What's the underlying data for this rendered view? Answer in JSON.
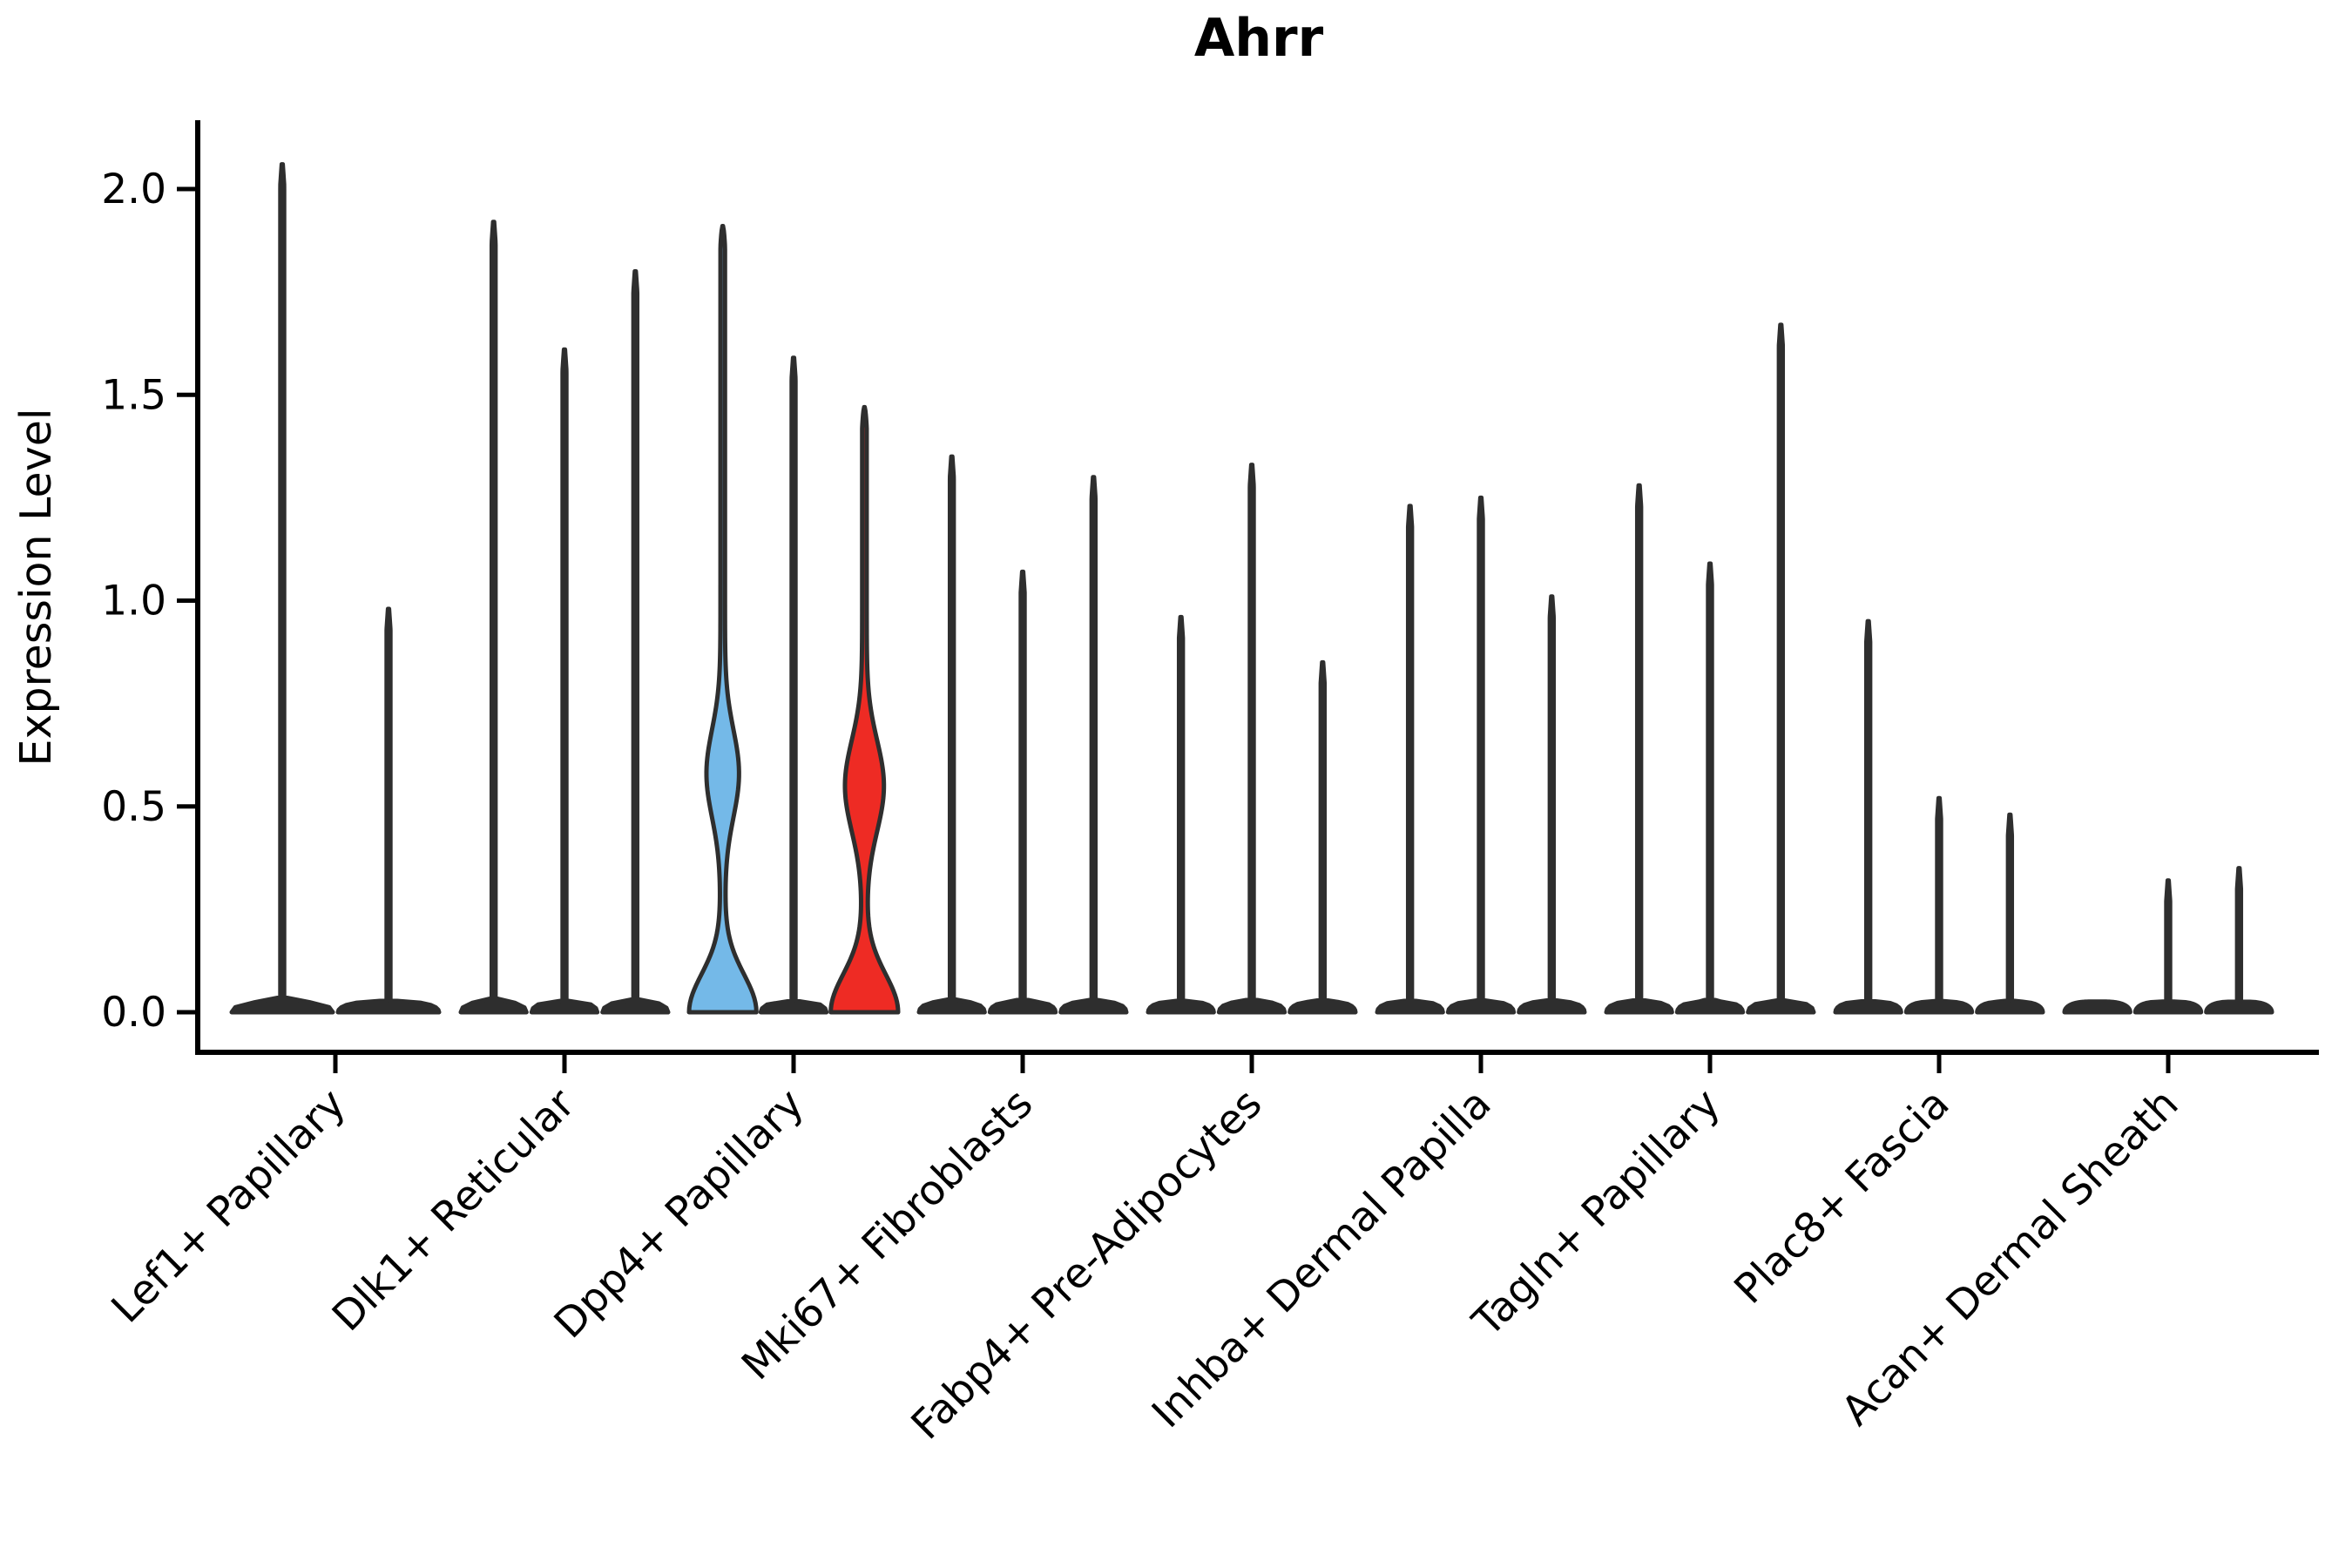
{
  "chart_data": {
    "type": "violin",
    "title": "Ahrr",
    "ylabel": "Expression Level",
    "xlabel": "",
    "ylim": [
      0,
      2.15
    ],
    "ytick_labels": [
      "0.0",
      "0.5",
      "1.0",
      "1.5",
      "2.0"
    ],
    "ytick_values": [
      0,
      0.5,
      1,
      1.5,
      2
    ],
    "grid": false,
    "legend": "none",
    "background": "#ffffff",
    "axis_color": "#000000",
    "violin_stroke_color": "#2E2E2E",
    "categories": [
      "Lef1+ Papillary",
      "Dlk1+ Reticular",
      "Dpp4+ Papillary",
      "Mki67+ Fibroblasts",
      "Fabp4+ Pre-Adipocytes",
      "Inhba+ Dermal Papilla",
      "Tagln+ Papillary",
      "Plac8+ Fascia",
      "Acan+ Dermal Sheath"
    ],
    "groups": [
      {
        "category": "Lef1+ Papillary",
        "violins": [
          {
            "max": 2.06,
            "color": "#2E2E2E"
          },
          {
            "max": 0.98,
            "color": "#2E2E2E"
          }
        ]
      },
      {
        "category": "Dlk1+ Reticular",
        "violins": [
          {
            "max": 1.92,
            "color": "#2E2E2E"
          },
          {
            "max": 1.61,
            "color": "#2E2E2E"
          },
          {
            "max": 1.8,
            "color": "#2E2E2E"
          }
        ]
      },
      {
        "category": "Dpp4+ Papillary",
        "violins": [
          {
            "max": 1.91,
            "color": "#74B9E8",
            "body": {
              "bulge_low": 0.39,
              "bulge_peak": 0.58,
              "bulge_high": 0.87,
              "bulge_width_frac": 0.46,
              "waist": 0.22
            }
          },
          {
            "max": 1.59,
            "color": "#2E2E2E"
          },
          {
            "max": 1.47,
            "color": "#EE2B24",
            "body": {
              "bulge_low": 0.35,
              "bulge_peak": 0.55,
              "bulge_high": 0.85,
              "bulge_width_frac": 0.55,
              "waist": 0.22
            }
          }
        ]
      },
      {
        "category": "Mki67+ Fibroblasts",
        "violins": [
          {
            "max": 1.35,
            "color": "#2E2E2E"
          },
          {
            "max": 1.07,
            "color": "#2E2E2E"
          },
          {
            "max": 1.3,
            "color": "#2E2E2E"
          }
        ]
      },
      {
        "category": "Fabp4+ Pre-Adipocytes",
        "violins": [
          {
            "max": 0.96,
            "color": "#2E2E2E"
          },
          {
            "max": 1.33,
            "color": "#2E2E2E"
          },
          {
            "max": 0.85,
            "color": "#2E2E2E"
          }
        ]
      },
      {
        "category": "Inhba+ Dermal Papilla",
        "violins": [
          {
            "max": 1.23,
            "color": "#2E2E2E"
          },
          {
            "max": 1.25,
            "color": "#2E2E2E"
          },
          {
            "max": 1.01,
            "color": "#2E2E2E"
          }
        ]
      },
      {
        "category": "Tagln+ Papillary",
        "violins": [
          {
            "max": 1.28,
            "color": "#2E2E2E"
          },
          {
            "max": 1.09,
            "color": "#2E2E2E"
          },
          {
            "max": 1.67,
            "color": "#2E2E2E"
          }
        ]
      },
      {
        "category": "Plac8+ Fascia",
        "violins": [
          {
            "max": 0.95,
            "color": "#2E2E2E"
          },
          {
            "max": 0.52,
            "color": "#2E2E2E"
          },
          {
            "max": 0.48,
            "color": "#2E2E2E"
          }
        ]
      },
      {
        "category": "Acan+ Dermal Sheath",
        "violins": [
          {
            "max": 0.0,
            "color": "#2E2E2E"
          },
          {
            "max": 0.32,
            "color": "#2E2E2E"
          },
          {
            "max": 0.35,
            "color": "#2E2E2E"
          }
        ]
      }
    ]
  }
}
